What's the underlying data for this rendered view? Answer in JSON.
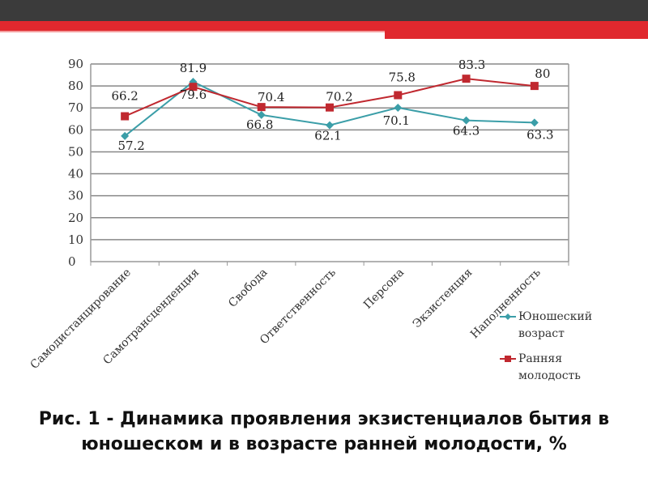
{
  "colors": {
    "topbar_dark": "#3b3b3b",
    "topbar_red": "#e0282e",
    "series_youth": "#3b9ea8",
    "series_early": "#c0282f",
    "grid": "#888888"
  },
  "chart_data": {
    "type": "line",
    "categories": [
      "Самодистанцирование",
      "Самотрансценденция",
      "Свобода",
      "Ответственность",
      "Персона",
      "Экзистенция",
      "Наполненность"
    ],
    "series": [
      {
        "name": "Юношеский возраст",
        "values": [
          57.2,
          81.9,
          66.8,
          62.1,
          70.1,
          64.3,
          63.3
        ],
        "labels": [
          "57.2",
          "81.9",
          "66.8",
          "62.1",
          "70.1",
          "64.3",
          "63.3"
        ]
      },
      {
        "name": "Ранняя молодость",
        "values": [
          66.2,
          79.6,
          70.4,
          70.2,
          75.8,
          83.3,
          80
        ],
        "labels": [
          "66.2",
          "79.6",
          "70.4",
          "70.2",
          "75.8",
          "83.3",
          "80"
        ]
      }
    ],
    "yticks": [
      "0",
      "10",
      "20",
      "30",
      "40",
      "50",
      "60",
      "70",
      "80",
      "90"
    ],
    "ylim": [
      0,
      90
    ],
    "grid": true,
    "legend_position": "right"
  },
  "caption": "Рис. 1 - Динамика проявления экзистенциалов бытия в юношеском и в возрасте ранней молодости, %"
}
